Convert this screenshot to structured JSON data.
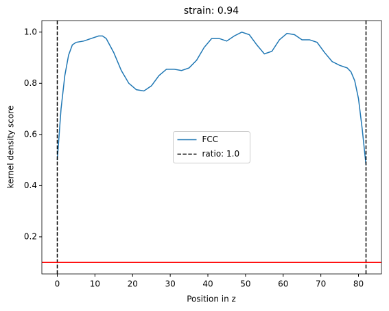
{
  "chart_data": {
    "type": "line",
    "title": "strain: 0.94",
    "x_label": "Position in z",
    "y_label": "kernel density score",
    "x": [
      0,
      1,
      2,
      3,
      4,
      5,
      7,
      9,
      11,
      12,
      13,
      15,
      17,
      19,
      21,
      23,
      25,
      27,
      29,
      31,
      33,
      35,
      37,
      39,
      41,
      43,
      45,
      47,
      49,
      51,
      53,
      55,
      57,
      59,
      61,
      63,
      65,
      67,
      69,
      71,
      73,
      75,
      77,
      78,
      79,
      80,
      81,
      82
    ],
    "series": [
      {
        "name": "FCC",
        "color": "#1f77b4",
        "values": [
          0.5,
          0.7,
          0.83,
          0.91,
          0.95,
          0.96,
          0.965,
          0.975,
          0.985,
          0.985,
          0.975,
          0.92,
          0.85,
          0.8,
          0.775,
          0.77,
          0.79,
          0.83,
          0.855,
          0.855,
          0.85,
          0.86,
          0.89,
          0.94,
          0.975,
          0.975,
          0.965,
          0.985,
          1.0,
          0.99,
          0.95,
          0.915,
          0.925,
          0.97,
          0.995,
          0.99,
          0.97,
          0.97,
          0.96,
          0.92,
          0.885,
          0.87,
          0.86,
          0.845,
          0.81,
          0.74,
          0.62,
          0.48
        ]
      }
    ],
    "vlines": {
      "name": "ratio: 1.0",
      "color": "#000000",
      "x": [
        0,
        82
      ]
    },
    "hlines": {
      "color": "#ff0000",
      "y": [
        0.1
      ]
    },
    "xlim": [
      -4.1,
      86.1
    ],
    "ylim": [
      0.055,
      1.045
    ],
    "xticks": [
      0,
      10,
      20,
      30,
      40,
      50,
      60,
      70,
      80
    ],
    "yticks": [
      0.2,
      0.4,
      0.6,
      0.8,
      {
        "value": 1,
        "label": "1.0"
      }
    ],
    "legend": "center"
  }
}
